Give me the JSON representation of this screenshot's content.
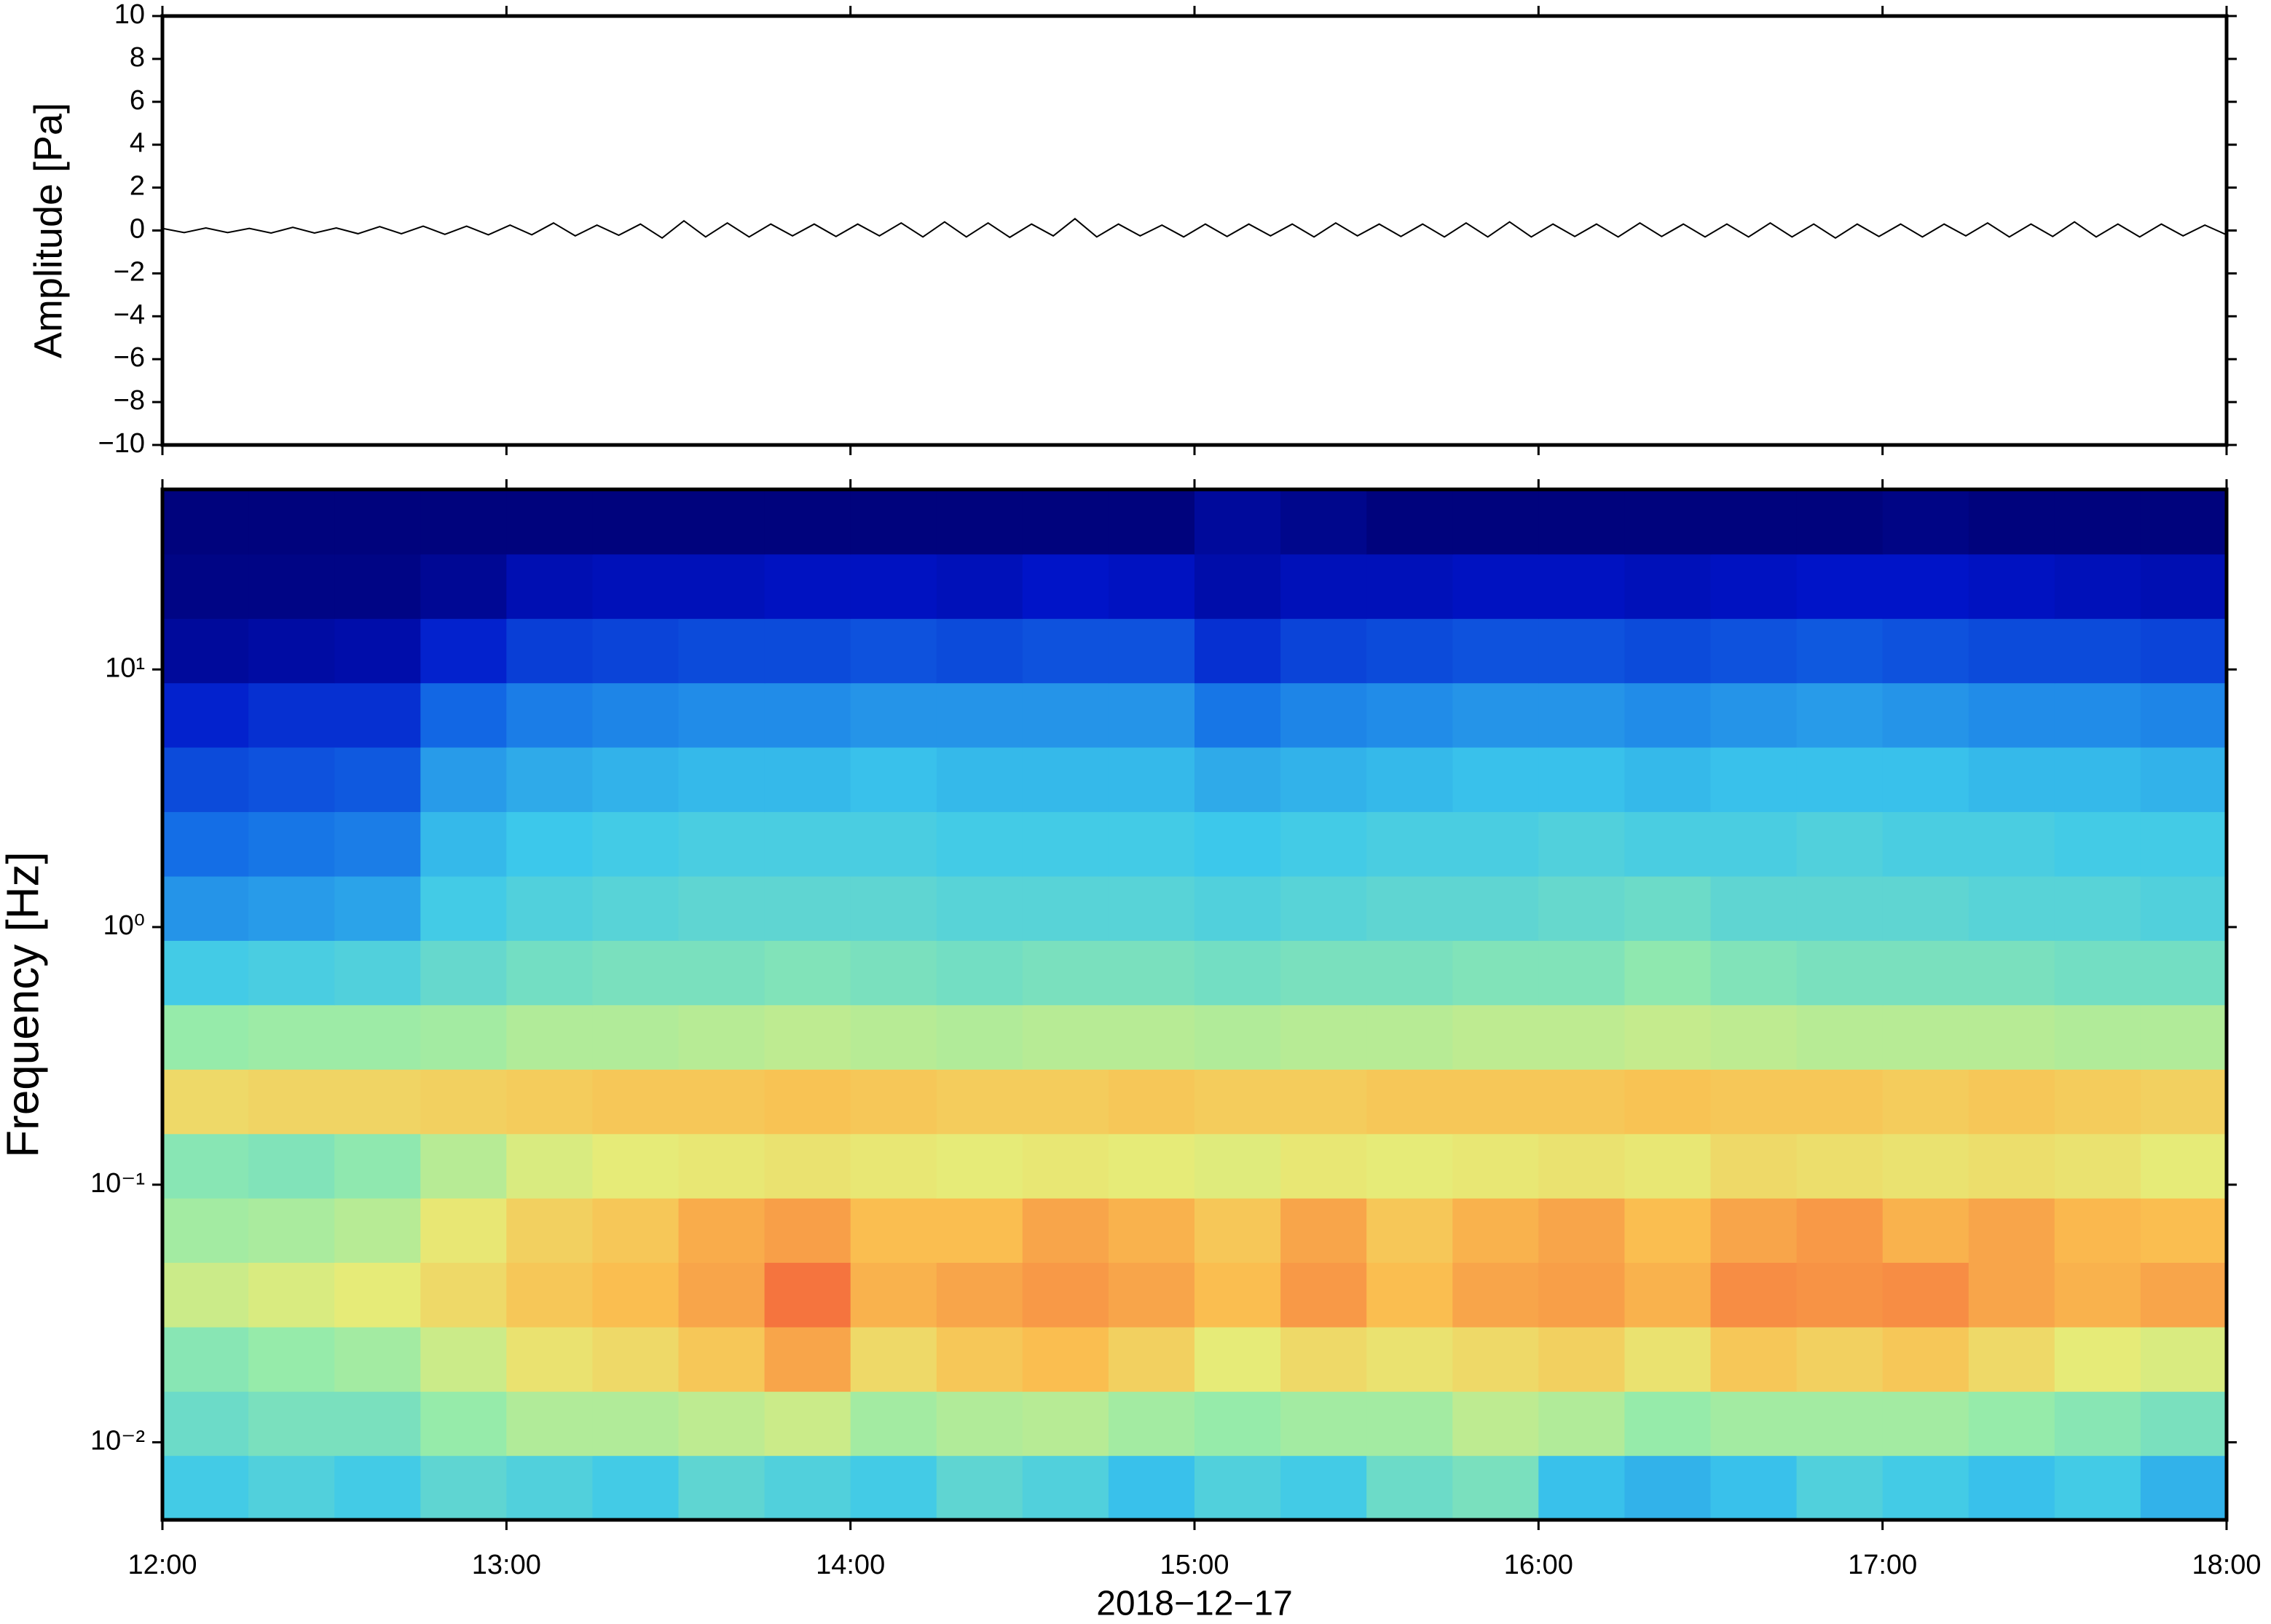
{
  "chart_data": [
    {
      "type": "line",
      "ylabel": "Amplitude [Pa]",
      "color": "#000000",
      "ylim": [
        -10,
        10
      ],
      "yticks": [
        {
          "value": -10,
          "label": "−10"
        },
        {
          "value": -8,
          "label": "−8"
        },
        {
          "value": -6,
          "label": "−6"
        },
        {
          "value": -4,
          "label": "−4"
        },
        {
          "value": -2,
          "label": "−2"
        },
        0,
        2,
        4,
        6,
        8,
        10
      ],
      "xticks": [
        "12:00",
        "13:00",
        "14:00",
        "15:00",
        "16:00",
        "17:00",
        "18:00"
      ],
      "values": [
        0.1,
        -0.1,
        0.12,
        -0.1,
        0.1,
        -0.12,
        0.15,
        -0.12,
        0.12,
        -0.15,
        0.18,
        -0.15,
        0.2,
        -0.18,
        0.2,
        -0.2,
        0.25,
        -0.2,
        0.35,
        -0.25,
        0.25,
        -0.22,
        0.3,
        -0.35,
        0.45,
        -0.3,
        0.35,
        -0.3,
        0.3,
        -0.25,
        0.3,
        -0.28,
        0.3,
        -0.25,
        0.35,
        -0.3,
        0.4,
        -0.3,
        0.35,
        -0.32,
        0.3,
        -0.25,
        0.55,
        -0.3,
        0.3,
        -0.25,
        0.25,
        -0.3,
        0.3,
        -0.28,
        0.3,
        -0.25,
        0.3,
        -0.3,
        0.35,
        -0.25,
        0.3,
        -0.28,
        0.3,
        -0.3,
        0.35,
        -0.3,
        0.4,
        -0.3,
        0.3,
        -0.28,
        0.3,
        -0.3,
        0.35,
        -0.28,
        0.3,
        -0.3,
        0.3,
        -0.3,
        0.35,
        -0.3,
        0.3,
        -0.35,
        0.3,
        -0.28,
        0.3,
        -0.3,
        0.3,
        -0.25,
        0.35,
        -0.3,
        0.3,
        -0.28,
        0.4,
        -0.3,
        0.3,
        -0.3,
        0.3,
        -0.25,
        0.25,
        -0.2
      ]
    },
    {
      "type": "heatmap",
      "ylabel": "Frequency [Hz]",
      "xlabel": "2018−12−17",
      "log_y": true,
      "ylim": [
        0.005,
        50
      ],
      "yticks": [
        {
          "value": 0.01,
          "label": "10⁻²"
        },
        {
          "value": 0.1,
          "label": "10⁻¹"
        },
        {
          "value": 1,
          "label": "10⁰"
        },
        {
          "value": 10,
          "label": "10¹"
        }
      ],
      "xticks": [
        "12:00",
        "13:00",
        "14:00",
        "15:00",
        "16:00",
        "17:00",
        "18:00"
      ],
      "y_edges": [
        0.005,
        0.0089,
        0.0158,
        0.0281,
        0.05,
        0.0889,
        0.158,
        0.281,
        0.5,
        0.889,
        1.58,
        2.81,
        5,
        8.89,
        15.8,
        28.1,
        50
      ],
      "z": [
        [
          38,
          40,
          38,
          42,
          40,
          38,
          42,
          40,
          38,
          42,
          40,
          36,
          40,
          38,
          44,
          46,
          36,
          34,
          36,
          40,
          38,
          36,
          38,
          34
        ],
        [
          44,
          46,
          46,
          50,
          54,
          54,
          56,
          58,
          52,
          54,
          55,
          52,
          50,
          52,
          52,
          56,
          54,
          50,
          52,
          52,
          52,
          50,
          48,
          46
        ],
        [
          48,
          50,
          52,
          58,
          64,
          66,
          70,
          76,
          66,
          70,
          72,
          68,
          62,
          66,
          64,
          66,
          68,
          64,
          70,
          68,
          70,
          66,
          62,
          60
        ],
        [
          58,
          60,
          62,
          66,
          70,
          72,
          76,
          84,
          74,
          76,
          78,
          76,
          72,
          78,
          72,
          76,
          77,
          74,
          80,
          79,
          80,
          76,
          74,
          76
        ],
        [
          52,
          53,
          55,
          63,
          68,
          70,
          75,
          77,
          72,
          72,
          76,
          74,
          70,
          76,
          70,
          74,
          76,
          72,
          76,
          78,
          74,
          76,
          73,
          72
        ],
        [
          48,
          47,
          49,
          55,
          60,
          62,
          63,
          64,
          63,
          62,
          63,
          62,
          61,
          63,
          62,
          63,
          64,
          63,
          66,
          65,
          64,
          65,
          64,
          62
        ],
        [
          66,
          67,
          67,
          68,
          69,
          70,
          70,
          71,
          70,
          69,
          69,
          70,
          69,
          69,
          70,
          70,
          70,
          71,
          70,
          70,
          69,
          70,
          69,
          68
        ],
        [
          50,
          51,
          51,
          52,
          54,
          54,
          55,
          56,
          55,
          54,
          55,
          55,
          54,
          55,
          55,
          56,
          56,
          57,
          56,
          55,
          55,
          55,
          54,
          54
        ],
        [
          38,
          39,
          40,
          43,
          45,
          46,
          46,
          47,
          46,
          45,
          46,
          46,
          45,
          46,
          46,
          47,
          47,
          49,
          47,
          46,
          46,
          46,
          45,
          45
        ],
        [
          30,
          31,
          32,
          38,
          40,
          41,
          42,
          42,
          42,
          41,
          41,
          41,
          40,
          41,
          42,
          42,
          43,
          44,
          42,
          42,
          42,
          41,
          41,
          40
        ],
        [
          25,
          26,
          27,
          35,
          37,
          38,
          39,
          39,
          39,
          38,
          38,
          38,
          37,
          38,
          39,
          39,
          40,
          39,
          39,
          40,
          39,
          39,
          38,
          38
        ],
        [
          20,
          21,
          22,
          31,
          33,
          34,
          35,
          35,
          36,
          35,
          35,
          35,
          33,
          34,
          35,
          36,
          36,
          35,
          36,
          36,
          36,
          35,
          35,
          34
        ],
        [
          14,
          16,
          16,
          24,
          27,
          28,
          29,
          29,
          30,
          30,
          30,
          30,
          26,
          28,
          29,
          30,
          30,
          29,
          30,
          31,
          30,
          29,
          29,
          28
        ],
        [
          6,
          7,
          8,
          14,
          18,
          19,
          20,
          20,
          21,
          20,
          21,
          21,
          16,
          19,
          20,
          21,
          21,
          20,
          21,
          22,
          21,
          20,
          20,
          19
        ],
        [
          3,
          3,
          3,
          5,
          9,
          10,
          10,
          11,
          11,
          10,
          12,
          11,
          8,
          10,
          10,
          11,
          11,
          10,
          11,
          12,
          12,
          11,
          10,
          9
        ],
        [
          2,
          2,
          2,
          2,
          2,
          2,
          2,
          2,
          2,
          2,
          2,
          2,
          6,
          4,
          2,
          2,
          2,
          2,
          2,
          2,
          3,
          2,
          2,
          2
        ]
      ]
    }
  ]
}
